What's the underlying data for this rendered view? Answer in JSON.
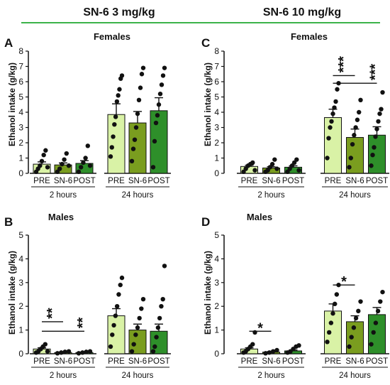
{
  "header": {
    "left": "SN-6 3 mg/kg",
    "right": "SN-6 10 mg/kg",
    "line_color": "#3cb34a"
  },
  "colors": {
    "PRE": "#d9f2a6",
    "SN-6": "#7a9d1f",
    "POST": "#2e8f2a",
    "edge": "#111111"
  },
  "chart_data": [
    {
      "panel": "A",
      "title": "Females",
      "type": "bar",
      "ylabel": "Ethanol intake (g/kg)",
      "ylim": [
        0,
        8
      ],
      "yticks": [
        0,
        1,
        2,
        3,
        4,
        5,
        6,
        7,
        8
      ],
      "groups": [
        {
          "label": "2 hours",
          "bars": [
            {
              "category": "PRE",
              "mean": 0.6,
              "sem": 0.15,
              "points": [
                0.1,
                0.3,
                0.5,
                0.8,
                1.2,
                1.5,
                0.4
              ]
            },
            {
              "category": "SN-6",
              "mean": 0.55,
              "sem": 0.13,
              "points": [
                0.1,
                0.3,
                0.6,
                0.9,
                1.3,
                0.5
              ]
            },
            {
              "category": "POST",
              "mean": 0.65,
              "sem": 0.18,
              "points": [
                0.1,
                0.4,
                0.7,
                1.0,
                1.8,
                0.5
              ]
            }
          ]
        },
        {
          "label": "24 hours",
          "bars": [
            {
              "category": "PRE",
              "mean": 3.85,
              "sem": 0.7,
              "points": [
                1.1,
                1.7,
                2.4,
                3.2,
                3.7,
                4.7,
                5.1,
                5.5,
                6.2,
                6.4
              ]
            },
            {
              "category": "SN-6",
              "mean": 3.3,
              "sem": 0.75,
              "points": [
                0.8,
                1.6,
                2.2,
                3.0,
                3.9,
                4.8,
                5.6,
                6.5,
                6.9
              ]
            },
            {
              "category": "POST",
              "mean": 4.1,
              "sem": 0.85,
              "points": [
                0.4,
                2.1,
                3.3,
                3.8,
                4.5,
                5.2,
                5.8,
                6.4,
                6.9
              ]
            }
          ]
        }
      ],
      "annotations": []
    },
    {
      "panel": "C",
      "title": "Females",
      "type": "bar",
      "ylabel": "Ethanol intake (g/kg)",
      "ylim": [
        0,
        8
      ],
      "yticks": [
        0,
        1,
        2,
        3,
        4,
        5,
        6,
        7,
        8
      ],
      "groups": [
        {
          "label": "2 hours",
          "bars": [
            {
              "category": "PRE",
              "mean": 0.45,
              "sem": 0.08,
              "points": [
                0.1,
                0.3,
                0.5,
                0.6,
                0.7,
                0.2
              ]
            },
            {
              "category": "SN-6",
              "mean": 0.35,
              "sem": 0.08,
              "points": [
                0.1,
                0.2,
                0.4,
                0.6,
                0.9,
                0.3
              ]
            },
            {
              "category": "POST",
              "mean": 0.4,
              "sem": 0.09,
              "points": [
                0.1,
                0.3,
                0.5,
                0.7,
                0.9,
                0.2
              ]
            }
          ]
        },
        {
          "label": "24 hours",
          "bars": [
            {
              "category": "PRE",
              "mean": 3.65,
              "sem": 0.55,
              "points": [
                1.0,
                2.3,
                3.0,
                3.4,
                3.9,
                4.3,
                4.7,
                5.5,
                5.9
              ]
            },
            {
              "category": "SN-6",
              "mean": 2.35,
              "sem": 0.55,
              "points": [
                0.4,
                1.0,
                1.9,
                2.5,
                3.0,
                3.5,
                4.0,
                4.8
              ]
            },
            {
              "category": "POST",
              "mean": 2.5,
              "sem": 0.55,
              "points": [
                0.5,
                1.2,
                1.7,
                2.4,
                2.9,
                3.4,
                3.9,
                4.2,
                5.3
              ]
            }
          ]
        }
      ],
      "annotations": [
        {
          "type": "bracket",
          "group": 1,
          "from": 0,
          "to": 1,
          "y": 6.4,
          "label": "***",
          "label_rotated": true,
          "label_pos": "above-middle"
        },
        {
          "type": "bracket",
          "group": 1,
          "from": 0,
          "to": 2,
          "y": 5.9,
          "label": "***",
          "label_rotated": true,
          "label_pos": "right-end"
        }
      ]
    },
    {
      "panel": "B",
      "title": "Males",
      "type": "bar",
      "ylabel": "Ethanol intake (g/kg)",
      "ylim": [
        0,
        5
      ],
      "yticks": [
        0,
        1,
        2,
        3,
        4,
        5
      ],
      "groups": [
        {
          "label": "2 hours",
          "bars": [
            {
              "category": "PRE",
              "mean": 0.2,
              "sem": 0.05,
              "points": [
                0.05,
                0.1,
                0.2,
                0.3,
                0.4,
                0.1
              ]
            },
            {
              "category": "SN-6",
              "mean": 0.05,
              "sem": 0.02,
              "points": [
                0.02,
                0.05,
                0.08,
                0.1
              ]
            },
            {
              "category": "POST",
              "mean": 0.05,
              "sem": 0.02,
              "points": [
                0.02,
                0.05,
                0.08,
                0.1
              ]
            }
          ]
        },
        {
          "label": "24 hours",
          "bars": [
            {
              "category": "PRE",
              "mean": 1.6,
              "sem": 0.3,
              "points": [
                0.3,
                0.8,
                1.2,
                1.6,
                2.0,
                2.5,
                2.9,
                3.2
              ]
            },
            {
              "category": "SN-6",
              "mean": 1.0,
              "sem": 0.25,
              "points": [
                0.1,
                0.4,
                0.8,
                1.1,
                1.5,
                1.9,
                2.3
              ]
            },
            {
              "category": "POST",
              "mean": 0.95,
              "sem": 0.3,
              "points": [
                0.1,
                0.3,
                0.7,
                1.1,
                1.5,
                2.0,
                2.3,
                3.7
              ]
            }
          ]
        }
      ],
      "annotations": [
        {
          "type": "bracket",
          "group": 0,
          "from": 0,
          "to": 1,
          "y": 1.35,
          "label": "**",
          "label_rotated": true,
          "label_pos": "above-middle"
        },
        {
          "type": "bracket",
          "group": 0,
          "from": 0,
          "to": 2,
          "y": 0.95,
          "label": "**",
          "label_rotated": true,
          "label_pos": "right-end"
        }
      ]
    },
    {
      "panel": "D",
      "title": "Males",
      "type": "bar",
      "ylabel": "Ethanol intake (g/kg)",
      "ylim": [
        0,
        5
      ],
      "yticks": [
        0,
        1,
        2,
        3,
        4,
        5
      ],
      "groups": [
        {
          "label": "2 hours",
          "bars": [
            {
              "category": "PRE",
              "mean": 0.2,
              "sem": 0.05,
              "points": [
                0.05,
                0.1,
                0.2,
                0.3,
                0.4,
                0.9
              ]
            },
            {
              "category": "SN-6",
              "mean": 0.07,
              "sem": 0.02,
              "points": [
                0.02,
                0.05,
                0.1,
                0.15
              ]
            },
            {
              "category": "POST",
              "mean": 0.12,
              "sem": 0.04,
              "points": [
                0.05,
                0.1,
                0.2,
                0.3,
                0.35
              ]
            }
          ]
        },
        {
          "label": "24 hours",
          "bars": [
            {
              "category": "PRE",
              "mean": 1.8,
              "sem": 0.3,
              "points": [
                0.5,
                0.9,
                1.3,
                1.7,
                2.1,
                2.5,
                2.9
              ]
            },
            {
              "category": "SN-6",
              "mean": 1.35,
              "sem": 0.25,
              "points": [
                0.3,
                0.7,
                1.1,
                1.5,
                1.8,
                2.2
              ]
            },
            {
              "category": "POST",
              "mean": 1.65,
              "sem": 0.3,
              "points": [
                0.4,
                0.9,
                1.3,
                1.8,
                2.2,
                2.6
              ]
            }
          ]
        }
      ],
      "annotations": [
        {
          "type": "bracket",
          "group": 0,
          "from": 0,
          "to": 1,
          "y": 0.95,
          "label": "*",
          "label_rotated": false,
          "label_pos": "above-middle"
        },
        {
          "type": "bracket",
          "group": 1,
          "from": 0,
          "to": 1,
          "y": 2.9,
          "label": "*",
          "label_rotated": false,
          "label_pos": "above-middle"
        }
      ]
    }
  ]
}
